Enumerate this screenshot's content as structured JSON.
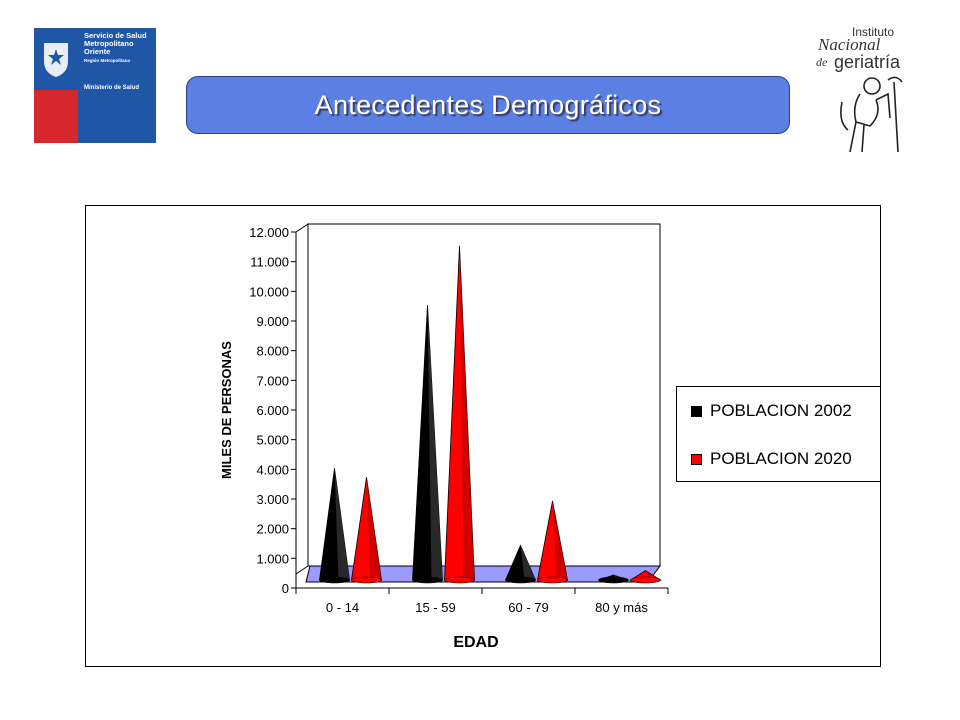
{
  "header": {
    "title": "Antecedentes Demográficos",
    "left_logo": {
      "name": "Servicio de Salud Metropolitano Oriente",
      "line1": "Servicio de Salud Metropolitano Oriente",
      "line2": "Región Metropolitana",
      "line3": "Ministerio de Salud"
    },
    "right_logo": {
      "line1": "Instituto",
      "line2": "Nacional",
      "line3": "de",
      "line4": "geriatría"
    }
  },
  "colors": {
    "title_bar": "#5b7fe3",
    "series_2002": "#000000",
    "series_2020": "#ff0000",
    "floor": "#9a9aff"
  },
  "chart_data": {
    "type": "bar",
    "shape": "3d-cone",
    "title": "",
    "xlabel": "EDAD",
    "ylabel": "MILES DE PERSONAS",
    "ylim": [
      0,
      12000
    ],
    "yticks": [
      "0",
      "1.000",
      "2.000",
      "3.000",
      "4.000",
      "5.000",
      "6.000",
      "7.000",
      "8.000",
      "9.000",
      "10.000",
      "11.000",
      "12.000"
    ],
    "categories": [
      "0 - 14",
      "15 - 59",
      "60 - 79",
      "80 y más"
    ],
    "series": [
      {
        "name": "POBLACION 2002",
        "color": "#000000",
        "values": [
          3900,
          9400,
          1300,
          300
        ]
      },
      {
        "name": "POBLACION 2020",
        "color": "#ff0000",
        "values": [
          3600,
          11400,
          2800,
          450
        ]
      }
    ],
    "legend_position": "right",
    "grid": false
  }
}
